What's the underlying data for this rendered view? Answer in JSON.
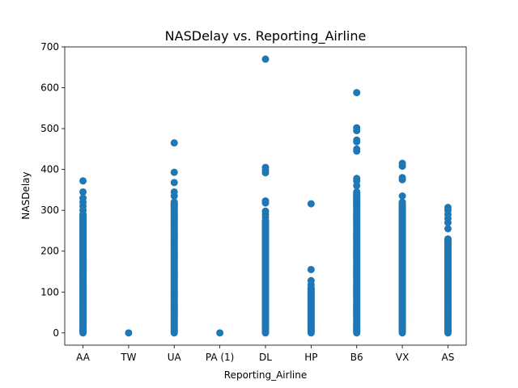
{
  "chart_data": {
    "type": "scatter",
    "title": "NASDelay vs. Reporting_Airline",
    "xlabel": "Reporting_Airline",
    "ylabel": "NASDelay",
    "categories": [
      "AA",
      "TW",
      "UA",
      "PA (1)",
      "DL",
      "HP",
      "B6",
      "VX",
      "AS"
    ],
    "ylim": [
      -30,
      700
    ],
    "yticks": [
      0,
      100,
      200,
      300,
      400,
      500,
      600,
      700
    ],
    "grid": false,
    "legend": "none",
    "marker_color": "#1f77b4",
    "series": [
      {
        "points": [
          {
            "category": "AA",
            "ranges": [
              [
                0,
                290
              ]
            ],
            "outliers": [
              300,
              310,
              320,
              330,
              345,
              372
            ]
          },
          {
            "category": "TW",
            "ranges": [],
            "outliers": [
              0
            ]
          },
          {
            "category": "UA",
            "ranges": [
              [
                0,
                320
              ]
            ],
            "outliers": [
              335,
              345,
              368,
              393,
              465
            ]
          },
          {
            "category": "PA (1)",
            "ranges": [],
            "outliers": [
              0
            ]
          },
          {
            "category": "DL",
            "ranges": [
              [
                0,
                275
              ]
            ],
            "outliers": [
              283,
              290,
              298,
              318,
              323,
              392,
              398,
              405,
              670
            ]
          },
          {
            "category": "HP",
            "ranges": [
              [
                0,
                110
              ]
            ],
            "outliers": [
              118,
              128,
              155,
              316
            ]
          },
          {
            "category": "B6",
            "ranges": [
              [
                0,
                345
              ]
            ],
            "outliers": [
              360,
              372,
              378,
              445,
              450,
              468,
              472,
              495,
              502,
              588
            ]
          },
          {
            "category": "VX",
            "ranges": [
              [
                0,
                320
              ]
            ],
            "outliers": [
              335,
              375,
              380,
              408,
              415
            ]
          },
          {
            "category": "AS",
            "ranges": [
              [
                0,
                230
              ]
            ],
            "outliers": [
              255,
              270,
              280,
              290,
              300,
              307
            ]
          }
        ]
      }
    ]
  }
}
